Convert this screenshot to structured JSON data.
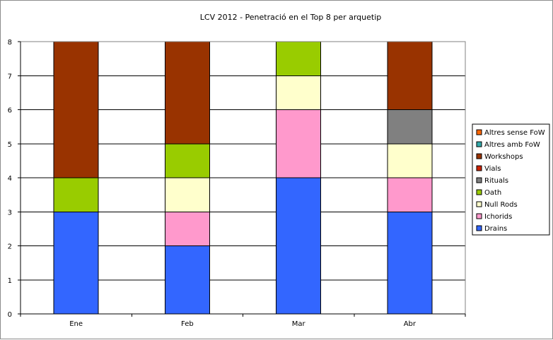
{
  "chart_data": {
    "type": "bar",
    "stacked": true,
    "title": "LCV 2012 - Penetració en el Top 8 per arquetip",
    "xlabel": "",
    "ylabel": "",
    "categories": [
      "Ene",
      "Feb",
      "Mar",
      "Abr"
    ],
    "ylim": [
      0,
      8
    ],
    "yticks": [
      0,
      1,
      2,
      3,
      4,
      5,
      6,
      7,
      8
    ],
    "grid": true,
    "legend_position": "right",
    "series": [
      {
        "name": "Drains",
        "color": "#3366ff",
        "values": [
          3,
          2,
          4,
          3
        ]
      },
      {
        "name": "Ichorids",
        "color": "#ff99cc",
        "values": [
          0,
          1,
          2,
          1
        ]
      },
      {
        "name": "Null Rods",
        "color": "#ffffcc",
        "values": [
          0,
          1,
          1,
          1
        ]
      },
      {
        "name": "Oath",
        "color": "#99cc00",
        "values": [
          1,
          1,
          1,
          0
        ]
      },
      {
        "name": "Rituals",
        "color": "#808080",
        "values": [
          0,
          0,
          0,
          1
        ]
      },
      {
        "name": "Vials",
        "color": "#cc2200",
        "values": [
          0,
          0,
          0,
          0
        ]
      },
      {
        "name": "Workshops",
        "color": "#993300",
        "values": [
          4,
          3,
          0,
          2
        ]
      },
      {
        "name": "Altres amb FoW",
        "color": "#33aaaa",
        "values": [
          0,
          0,
          0,
          0
        ]
      },
      {
        "name": "Altres sense FoW",
        "color": "#ff6600",
        "values": [
          0,
          0,
          0,
          0
        ]
      }
    ]
  }
}
